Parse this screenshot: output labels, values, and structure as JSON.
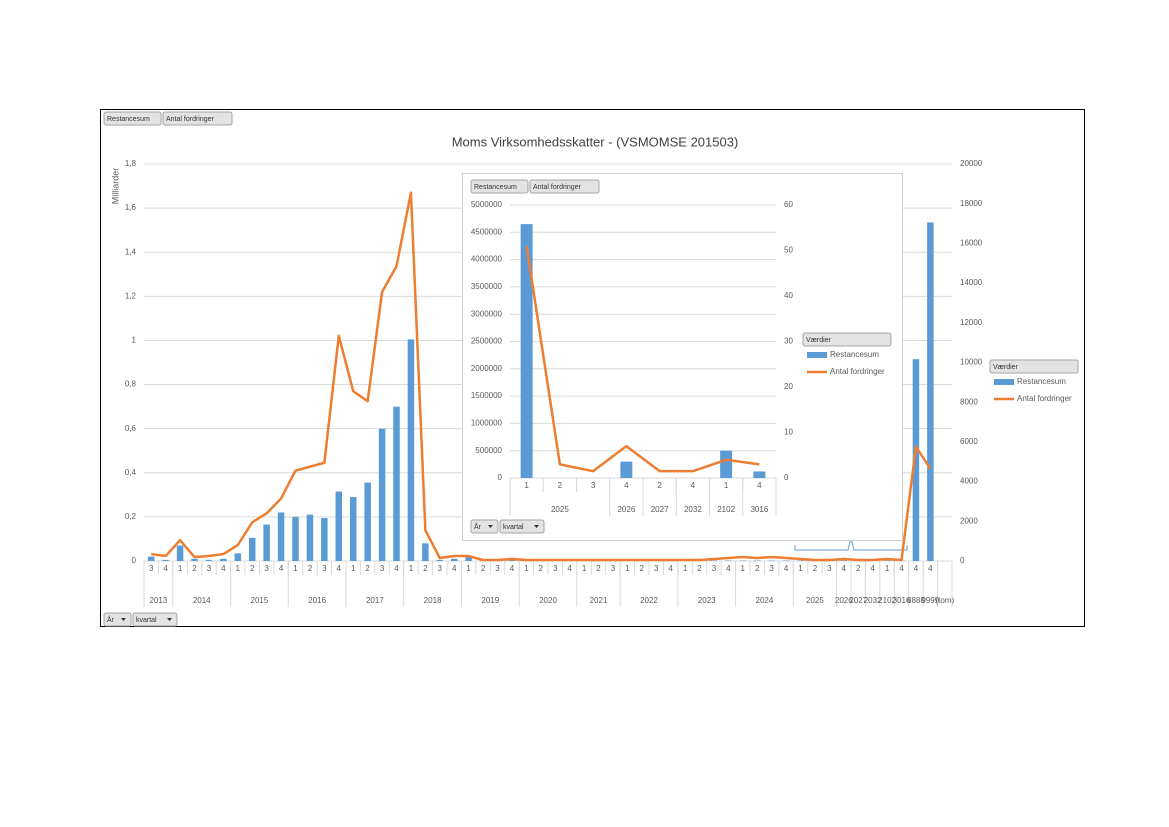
{
  "chart_data": [
    {
      "type": "bar_line",
      "title": "Moms Virksomhedsskatter - (VSMOMSE 201503)",
      "y_label": "Milliarder",
      "field_buttons": [
        "Restancesum",
        "Antal fordringer"
      ],
      "axis_buttons": [
        "År",
        "kvartal"
      ],
      "legend_title": "Værdier",
      "grid": true,
      "categories": [
        "3",
        "4",
        "1",
        "2",
        "3",
        "4",
        "1",
        "2",
        "3",
        "4",
        "1",
        "2",
        "3",
        "4",
        "1",
        "2",
        "3",
        "4",
        "1",
        "2",
        "3",
        "4",
        "1",
        "2",
        "3",
        "4",
        "1",
        "2",
        "3",
        "4",
        "1",
        "2",
        "3",
        "1",
        "2",
        "3",
        "4",
        "1",
        "2",
        "3",
        "4",
        "1",
        "2",
        "3",
        "4",
        "1",
        "2",
        "3",
        "4",
        "2",
        "4",
        "1",
        "4",
        "4",
        "4",
        null
      ],
      "category_groups": [
        "2013",
        "2013",
        "2014",
        "2014",
        "2014",
        "2014",
        "2015",
        "2015",
        "2015",
        "2015",
        "2016",
        "2016",
        "2016",
        "2016",
        "2017",
        "2017",
        "2017",
        "2017",
        "2018",
        "2018",
        "2018",
        "2018",
        "2019",
        "2019",
        "2019",
        "2019",
        "2020",
        "2020",
        "2020",
        "2020",
        "2021",
        "2021",
        "2021",
        "2022",
        "2022",
        "2022",
        "2022",
        "2023",
        "2023",
        "2023",
        "2023",
        "2024",
        "2024",
        "2024",
        "2024",
        "2025",
        "2025",
        "2025",
        "2026",
        "2027",
        "2032",
        "2102",
        "3016",
        "8888",
        "9999",
        "(tom)"
      ],
      "ylim": [
        0,
        1.8
      ],
      "yticks": [
        0,
        {
          "value": 0.2,
          "label": "0,2"
        },
        {
          "value": 0.4,
          "label": "0,4"
        },
        {
          "value": 0.6,
          "label": "0,6"
        },
        {
          "value": 0.8,
          "label": "0,8"
        },
        1,
        {
          "value": 1.2,
          "label": "1,2"
        },
        {
          "value": 1.4,
          "label": "1,4"
        },
        {
          "value": 1.6,
          "label": "1,6"
        },
        {
          "value": 1.8,
          "label": "1,8"
        }
      ],
      "y2lim": [
        0,
        20000
      ],
      "y2ticks": [
        0,
        2000,
        4000,
        6000,
        8000,
        10000,
        12000,
        14000,
        16000,
        18000,
        20000
      ],
      "series": [
        {
          "name": "Restancesum",
          "color": "#5b9bd5",
          "type": "bar",
          "values": [
            0.02,
            0.005,
            0.07,
            0.01,
            0.005,
            0.01,
            0.035,
            0.105,
            0.165,
            0.22,
            0.2,
            0.21,
            0.195,
            0.315,
            0.29,
            0.355,
            0.6,
            0.7,
            1.005,
            0.08,
            0.005,
            0.01,
            0.02,
            0.005,
            0.005,
            0.005,
            0.002,
            0.002,
            0.002,
            0.002,
            0.002,
            0.002,
            0.002,
            0.002,
            0.002,
            0.002,
            0.002,
            0.002,
            0.002,
            0.002,
            0.002,
            0.002,
            0.002,
            0.002,
            0.002,
            0.002,
            0.002,
            0.002,
            0.002,
            0.002,
            0.002,
            0.002,
            0.002,
            0.915,
            1.535,
            null
          ]
        },
        {
          "name": "Antal fordringer",
          "color": "#ed7d31",
          "type": "line",
          "axis": "y2",
          "values": [
            350,
            250,
            1050,
            200,
            250,
            350,
            800,
            1950,
            2400,
            3150,
            4550,
            4750,
            4950,
            11350,
            8550,
            8050,
            13550,
            14850,
            18550,
            1550,
            150,
            250,
            250,
            50,
            50,
            100,
            50,
            50,
            50,
            50,
            50,
            50,
            50,
            50,
            50,
            50,
            50,
            50,
            50,
            100,
            150,
            200,
            150,
            200,
            150,
            100,
            50,
            50,
            100,
            50,
            50,
            100,
            50,
            5750,
            4650,
            null
          ]
        }
      ]
    },
    {
      "type": "bar_line",
      "field_buttons": [
        "Restancesum",
        "Antal fordringer"
      ],
      "axis_buttons": [
        "År",
        "kvartal"
      ],
      "legend_title": "Værdier",
      "grid": true,
      "categories": [
        "1",
        "2",
        "3",
        "4",
        "2",
        "4",
        "1",
        "4"
      ],
      "category_groups": [
        "2025",
        "2025",
        "2025",
        "2026",
        "2027",
        "2032",
        "2102",
        "3016"
      ],
      "ylim": [
        0,
        5000000
      ],
      "yticks": [
        0,
        500000,
        1000000,
        1500000,
        2000000,
        2500000,
        3000000,
        3500000,
        4000000,
        4500000,
        5000000
      ],
      "y2lim": [
        0,
        60
      ],
      "y2ticks": [
        0,
        10,
        20,
        30,
        40,
        50,
        60
      ],
      "series": [
        {
          "name": "Restancesum",
          "color": "#5b9bd5",
          "type": "bar",
          "values": [
            4650000,
            0,
            0,
            300000,
            0,
            0,
            500000,
            120000
          ]
        },
        {
          "name": "Antal fordringer",
          "color": "#ed7d31",
          "type": "line",
          "axis": "y2",
          "values": [
            51,
            3,
            1.5,
            7,
            1.5,
            1.5,
            4,
            3
          ]
        }
      ]
    }
  ]
}
